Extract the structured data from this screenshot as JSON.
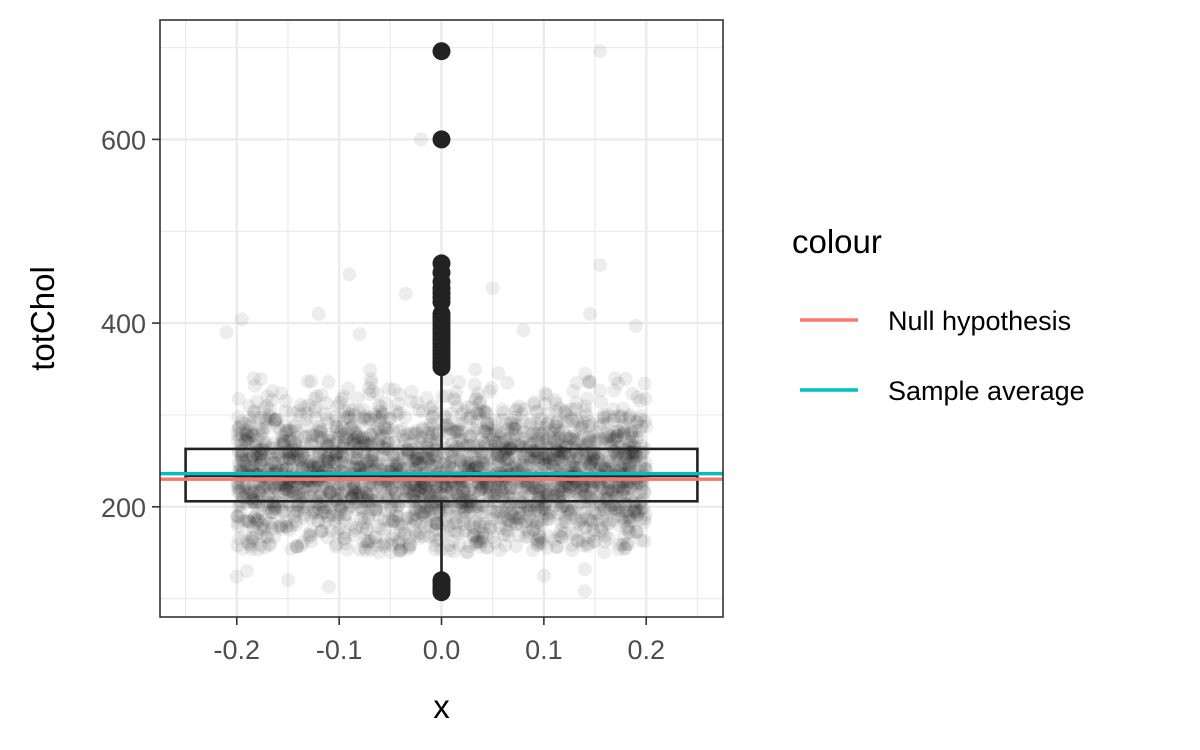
{
  "chart_data": {
    "type": "scatter",
    "xlabel": "x",
    "ylabel": "totChol",
    "xlim": [
      -0.275,
      0.275
    ],
    "ylim": [
      80,
      730
    ],
    "x_ticks": [
      -0.2,
      -0.1,
      0.0,
      0.1,
      0.2
    ],
    "x_tick_labels": [
      "-0.2",
      "-0.1",
      "0.0",
      "0.1",
      "0.2"
    ],
    "y_ticks": [
      200,
      400,
      600
    ],
    "y_tick_labels": [
      "200",
      "400",
      "600"
    ],
    "grid": true,
    "legend_position": "right",
    "legend": {
      "title": "colour",
      "entries": [
        {
          "label": "Null hypothesis",
          "color": "#F8766D"
        },
        {
          "label": "Sample average",
          "color": "#00BFC4"
        }
      ]
    },
    "hlines": [
      {
        "name": "Null hypothesis",
        "y": 230,
        "color": "#F8766D"
      },
      {
        "name": "Sample average",
        "y": 236,
        "color": "#00BFC4"
      }
    ],
    "boxplot": {
      "x": 0.0,
      "width": 0.5,
      "q1": 206,
      "median": 234,
      "q3": 263,
      "whisker_low": 113,
      "whisker_high": 352,
      "outliers_high": [
        352,
        356,
        358,
        362,
        366,
        370,
        374,
        378,
        382,
        386,
        390,
        394,
        398,
        402,
        406,
        410,
        423,
        428,
        433,
        438,
        445,
        455,
        465,
        600,
        696
      ],
      "outliers_low": [
        107,
        110,
        113,
        117,
        120
      ]
    },
    "jitter": {
      "n_points": 2600,
      "x_range": [
        -0.2,
        0.2
      ],
      "center": 234,
      "spread": 42,
      "color": "#000000",
      "opacity": 0.07,
      "notable_points": [
        {
          "x": -0.02,
          "y": 600
        },
        {
          "x": 0.155,
          "y": 696
        },
        {
          "x": 0.155,
          "y": 463
        },
        {
          "x": -0.09,
          "y": 453
        },
        {
          "x": 0.05,
          "y": 438
        },
        {
          "x": -0.035,
          "y": 432
        },
        {
          "x": -0.12,
          "y": 410
        },
        {
          "x": 0.145,
          "y": 410
        },
        {
          "x": -0.195,
          "y": 404
        },
        {
          "x": 0.19,
          "y": 397
        },
        {
          "x": 0.08,
          "y": 392
        },
        {
          "x": -0.21,
          "y": 390
        },
        {
          "x": -0.08,
          "y": 388
        },
        {
          "x": -0.19,
          "y": 130
        },
        {
          "x": -0.15,
          "y": 120
        },
        {
          "x": -0.11,
          "y": 113
        },
        {
          "x": 0.1,
          "y": 125
        },
        {
          "x": 0.14,
          "y": 108
        },
        {
          "x": 0.14,
          "y": 132
        },
        {
          "x": -0.2,
          "y": 124
        }
      ]
    }
  }
}
